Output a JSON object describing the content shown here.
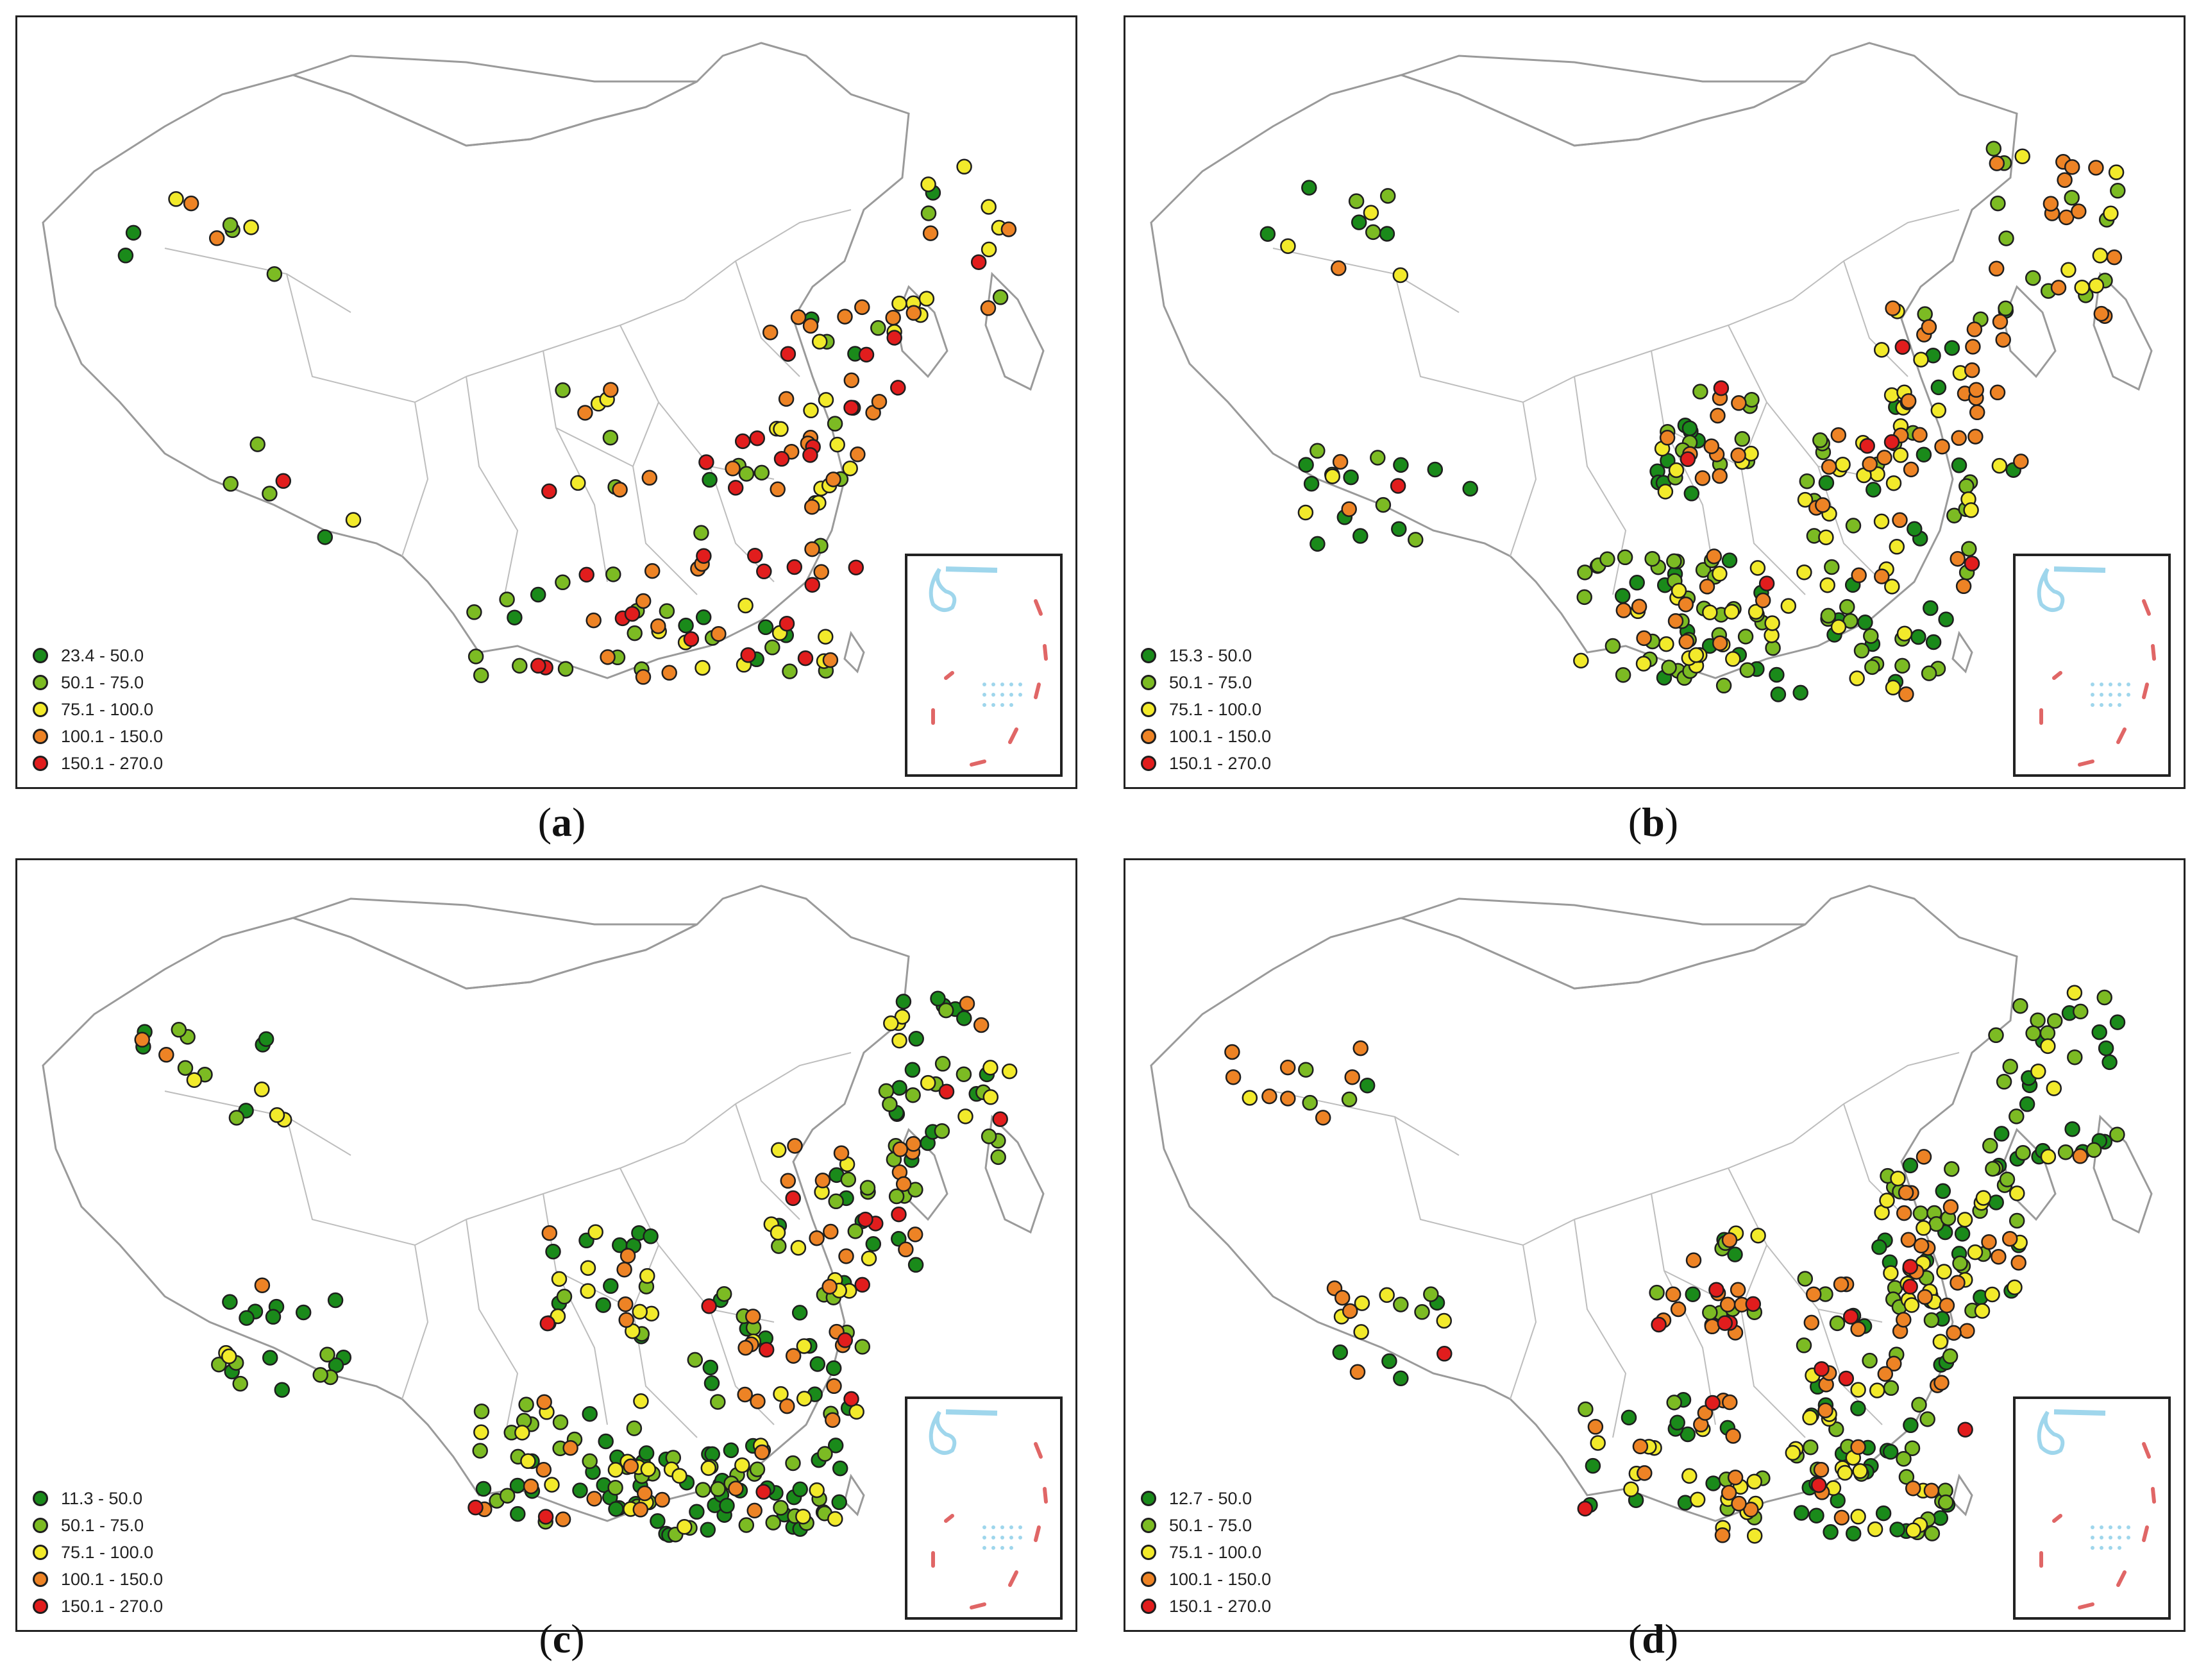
{
  "colors": {
    "range1": "#1a8a1a",
    "range2": "#7cbb23",
    "range3": "#f2ea2b",
    "range4": "#ed8325",
    "range5": "#e11d1d",
    "boundary": "#9a9a9a",
    "inset_water": "#9fd6ec",
    "inset_dash": "#e06666"
  },
  "panels": [
    {
      "id": "a",
      "caption_letter": "a",
      "legend": [
        "23.4 - 50.0",
        "50.1 - 75.0",
        "75.1 - 100.0",
        "100.1 - 150.0",
        "150.1 - 270.0"
      ],
      "station_counts": {
        "range1": 14,
        "range2": 38,
        "range3": 34,
        "range4": 42,
        "range5": 30
      }
    },
    {
      "id": "b",
      "caption_letter": "b",
      "legend": [
        "15.3 - 50.0",
        "50.1 - 75.0",
        "75.1 - 100.0",
        "100.1 - 150.0",
        "150.1 - 270.0"
      ],
      "station_counts": {
        "range1": 60,
        "range2": 95,
        "range3": 70,
        "range4": 70,
        "range5": 8
      }
    },
    {
      "id": "c",
      "caption_letter": "c",
      "legend": [
        "11.3 - 50.0",
        "50.1 - 75.0",
        "75.1 - 100.0",
        "100.1 - 150.0",
        "150.1 - 270.0"
      ],
      "station_counts": {
        "range1": 110,
        "range2": 90,
        "range3": 60,
        "range4": 50,
        "range5": 15
      }
    },
    {
      "id": "d",
      "caption_letter": "d",
      "legend": [
        "12.7 - 50.0",
        "50.1 - 75.0",
        "75.1 - 100.0",
        "100.1 - 150.0",
        "150.1 - 270.0"
      ],
      "station_counts": {
        "range1": 80,
        "range2": 85,
        "range3": 70,
        "range4": 75,
        "range5": 15
      }
    }
  ]
}
